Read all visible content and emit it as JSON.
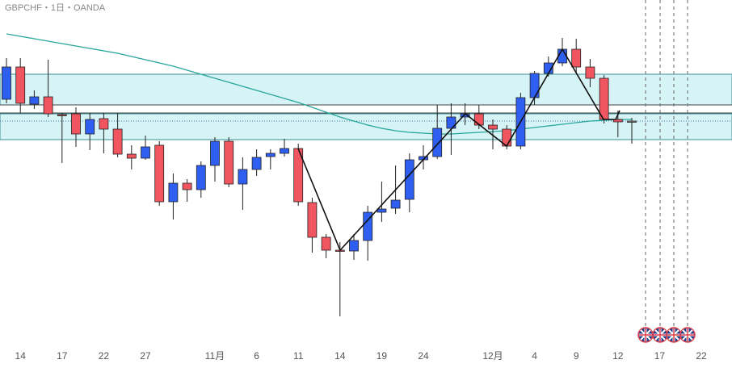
{
  "chart_data": {
    "type": "candlestick",
    "title": "GBPCHF・1日・OANDA",
    "categories": [
      null,
      "14",
      null,
      null,
      "17",
      null,
      null,
      "22",
      null,
      null,
      "27",
      null,
      null,
      null,
      null,
      "11月",
      null,
      null,
      "6",
      null,
      null,
      "11",
      null,
      null,
      "14",
      null,
      null,
      "19",
      null,
      null,
      "24",
      null,
      null,
      null,
      null,
      "12月",
      null,
      null,
      "4",
      null,
      null,
      "9",
      null,
      null,
      "12",
      null,
      null,
      "17",
      null,
      null,
      "22"
    ],
    "open": [
      1.1377,
      1.1417,
      1.1371,
      1.138,
      1.1358,
      1.1359,
      1.1334,
      1.1353,
      1.134,
      1.1309,
      1.1304,
      1.132,
      1.125,
      1.1273,
      1.1265,
      1.1295,
      1.1325,
      1.1272,
      1.129,
      1.1306,
      1.131,
      1.1316,
      1.1249,
      1.1206,
      1.119,
      1.1189,
      1.1202,
      1.1237,
      1.1242,
      1.1253,
      1.1302,
      1.1306,
      1.1341,
      1.1355,
      1.1359,
      1.1345,
      1.134,
      1.1319,
      1.1379,
      1.1409,
      1.1422,
      1.1439,
      1.1417,
      1.1403,
      1.1352,
      1.135,
      null,
      null,
      null,
      null,
      null
    ],
    "high": [
      1.1428,
      1.1428,
      1.1388,
      1.1426,
      1.136,
      1.1367,
      1.136,
      1.136,
      1.136,
      1.132,
      1.1332,
      1.1325,
      1.1285,
      1.1278,
      1.13,
      1.133,
      1.133,
      1.1305,
      1.1315,
      1.1315,
      1.1328,
      1.1322,
      1.1255,
      1.121,
      1.12,
      1.121,
      1.1245,
      1.1275,
      1.1295,
      1.131,
      1.132,
      1.137,
      1.1372,
      1.1372,
      1.137,
      1.1352,
      1.1345,
      1.1385,
      1.1412,
      1.143,
      1.1453,
      1.1452,
      1.1427,
      1.1407,
      1.1363,
      1.1354,
      null,
      null,
      null,
      null,
      null
    ],
    "low": [
      1.1372,
      1.136,
      1.1365,
      1.1355,
      1.1298,
      1.1318,
      1.1314,
      1.131,
      1.1305,
      1.129,
      1.1302,
      1.1245,
      1.1228,
      1.125,
      1.1255,
      1.1275,
      1.1268,
      1.124,
      1.1282,
      1.129,
      1.1306,
      1.1245,
      1.1187,
      1.118,
      1.1108,
      1.1178,
      1.1177,
      1.1225,
      1.1235,
      1.1237,
      1.129,
      1.1303,
      1.1308,
      1.1345,
      1.134,
      1.1315,
      1.1315,
      1.1315,
      1.137,
      1.1405,
      1.1418,
      1.141,
      1.1392,
      1.1347,
      1.133,
      1.1322,
      null,
      null,
      null,
      null,
      null
    ],
    "close": [
      1.1417,
      1.1372,
      1.138,
      1.1359,
      1.1357,
      1.1334,
      1.1352,
      1.134,
      1.1309,
      1.1304,
      1.1318,
      1.125,
      1.1273,
      1.1265,
      1.1295,
      1.1325,
      1.1272,
      1.129,
      1.1305,
      1.131,
      1.1316,
      1.125,
      1.1206,
      1.119,
      1.1189,
      1.1202,
      1.1237,
      1.1241,
      1.1252,
      1.1302,
      1.1306,
      1.1341,
      1.1355,
      1.1359,
      1.1345,
      1.134,
      1.1319,
      1.1379,
      1.1409,
      1.1422,
      1.1439,
      1.1417,
      1.1403,
      1.1352,
      1.1349,
      1.135,
      null,
      null,
      null,
      null,
      null
    ],
    "up_color": "#2f5ff0",
    "down_color": "#f05560",
    "neutral_color": "#888888",
    "moving_average": {
      "color": "#26a69a",
      "values": [
        1.1458,
        1.1455,
        1.1452,
        1.1449,
        1.1446,
        1.1443,
        1.144,
        1.1437,
        1.1434,
        1.143,
        1.1426,
        1.1422,
        1.1418,
        1.1413,
        1.1408,
        1.1403,
        1.1398,
        1.1393,
        1.1388,
        1.1383,
        1.1378,
        1.1373,
        1.1367,
        1.1361,
        1.1355,
        1.135,
        1.1345,
        1.1341,
        1.1338,
        1.1336,
        1.1335,
        1.1334,
        1.1334,
        1.1335,
        1.1336,
        1.1337,
        1.1338,
        1.134,
        1.1342,
        1.1344,
        1.1346,
        1.1348,
        1.135,
        1.1351,
        1.1352,
        1.1352,
        null,
        null,
        null,
        null,
        null
      ]
    },
    "zones": [
      {
        "top": 1.1408,
        "bottom": 1.137
      },
      {
        "top": 1.1359,
        "bottom": 1.1327
      }
    ],
    "zone_color": "#d6f3f6",
    "levels": [
      1.137,
      1.136
    ],
    "dotted_level": 1.135,
    "ylim": [
      1.107,
      1.15
    ]
  }
}
